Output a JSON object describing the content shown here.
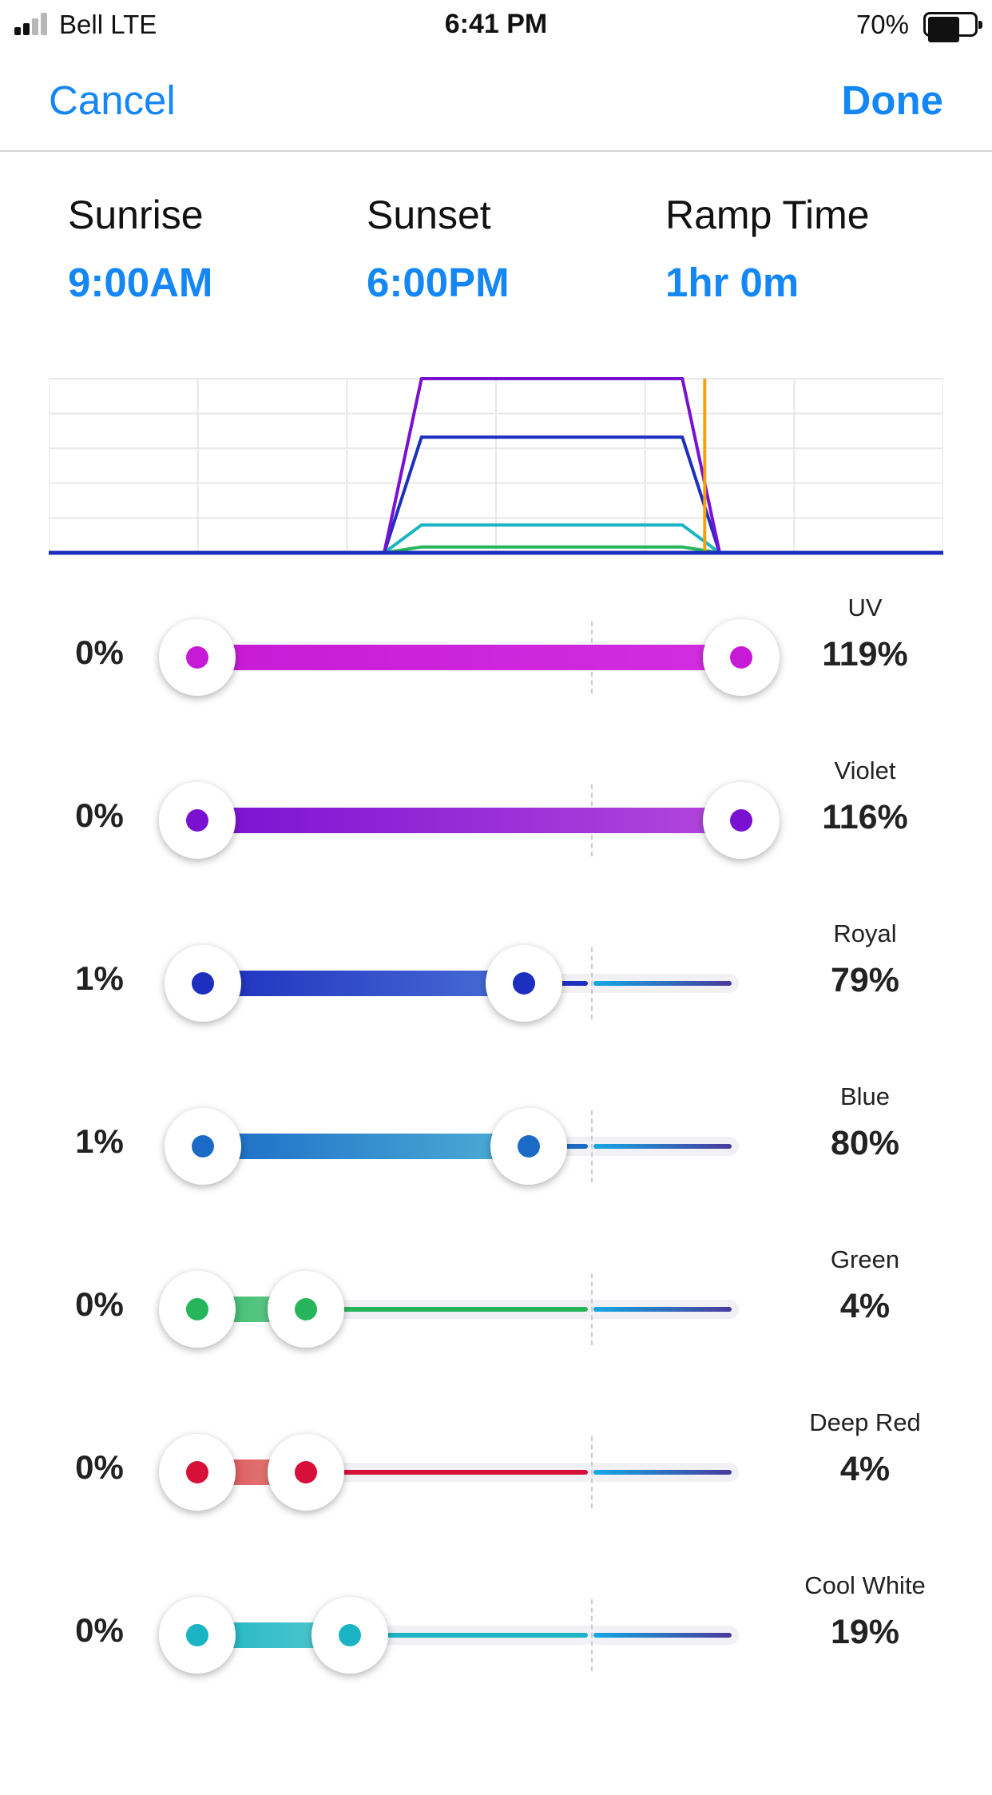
{
  "status_bar": {
    "carrier": "Bell  LTE",
    "time": "6:41 PM",
    "battery_percent": "70%",
    "battery_level": 0.7,
    "signal_bars": 2
  },
  "nav": {
    "cancel_label": "Cancel",
    "done_label": "Done"
  },
  "schedule": {
    "sunrise": {
      "label": "Sunrise",
      "value": "9:00AM"
    },
    "sunset": {
      "label": "Sunset",
      "value": "6:00PM"
    },
    "ramp": {
      "label": "Ramp Time",
      "value": "1hr 0m"
    }
  },
  "channels": [
    {
      "name": "UV",
      "min": "0%",
      "max": "119%",
      "min_frac": 0.0,
      "max_frac": 1.0,
      "dot_color": "#c71ad6",
      "fill_start": "#c71ad6",
      "fill_end": "#d22fe0",
      "tail_color": null
    },
    {
      "name": "Violet",
      "min": "0%",
      "max": "116%",
      "min_frac": 0.0,
      "max_frac": 1.0,
      "dot_color": "#7a10d2",
      "fill_start": "#7a10d2",
      "fill_end": "#b448dc",
      "tail_color": null
    },
    {
      "name": "Royal",
      "min": "1%",
      "max": "79%",
      "min_frac": 0.01,
      "max_frac": 0.6,
      "dot_color": "#1d2fbe",
      "fill_start": "#1d2fbe",
      "fill_end": "#4a6fd6",
      "tail_color": "#1d2fbe"
    },
    {
      "name": "Blue",
      "min": "1%",
      "max": "80%",
      "min_frac": 0.01,
      "max_frac": 0.61,
      "dot_color": "#1b6bc6",
      "fill_start": "#1b6bc6",
      "fill_end": "#4fb0d6",
      "tail_color": "#1b6bc6"
    },
    {
      "name": "Green",
      "min": "0%",
      "max": "4%",
      "min_frac": 0.0,
      "max_frac": 0.2,
      "dot_color": "#26b55a",
      "fill_start": "#34b86a",
      "fill_end": "#6ccf90",
      "tail_color": "#26b55a"
    },
    {
      "name": "Deep Red",
      "min": "0%",
      "max": "4%",
      "min_frac": 0.0,
      "max_frac": 0.2,
      "dot_color": "#d7103a",
      "fill_start": "#e04a5a",
      "fill_end": "#e08a7a",
      "tail_color": "#d7103a"
    },
    {
      "name": "Cool White",
      "min": "0%",
      "max": "19%",
      "min_frac": 0.0,
      "max_frac": 0.28,
      "dot_color": "#1ab4c4",
      "fill_start": "#1ab4c4",
      "fill_end": "#5bcbd0",
      "tail_color": "#1ab4c4"
    }
  ],
  "chart_data": {
    "type": "line",
    "x": [
      0,
      9,
      10,
      17,
      18,
      24
    ],
    "series": [
      {
        "color": "#7a10d2",
        "values": [
          0,
          0,
          119,
          119,
          0,
          0
        ]
      },
      {
        "color": "#1d2fbe",
        "values": [
          0,
          0,
          79,
          79,
          0,
          0
        ]
      },
      {
        "color": "#1ab4c4",
        "values": [
          0,
          0,
          19,
          19,
          0,
          0
        ]
      },
      {
        "color": "#26b55a",
        "values": [
          0,
          0,
          4,
          4,
          0,
          0
        ]
      }
    ],
    "current_time_marker": {
      "x": 17.6,
      "color": "#f5a00f"
    },
    "xlim": [
      0,
      24
    ],
    "ylim": [
      0,
      119
    ],
    "grid": true,
    "grid_color": "#e8e8ec"
  }
}
